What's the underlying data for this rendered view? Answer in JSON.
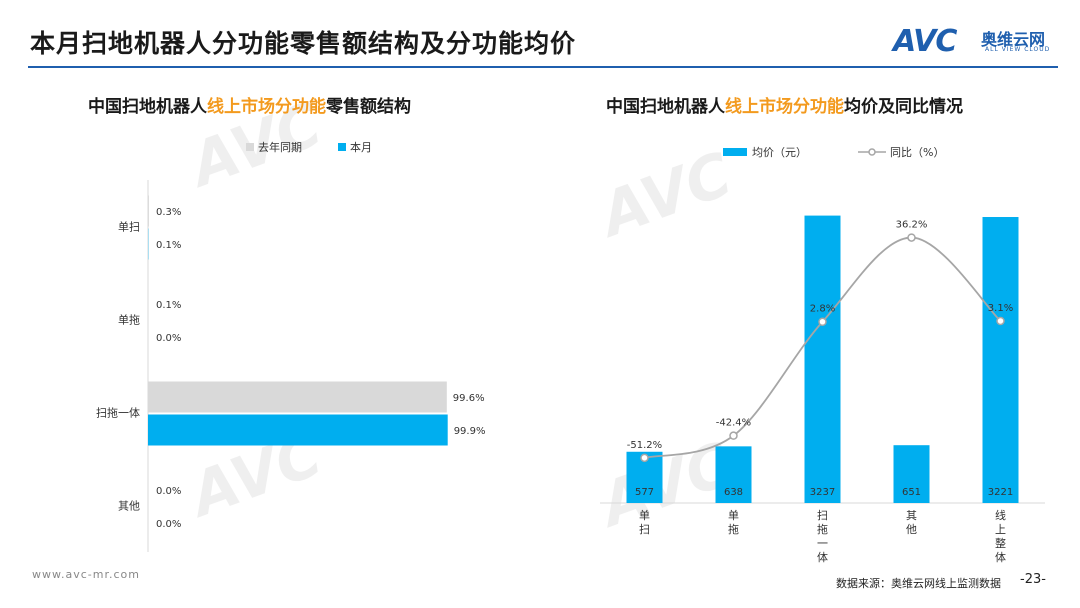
{
  "page": {
    "title": "本月扫地机器人分功能零售额结构及分功能均价",
    "logo_text": "AVC",
    "logo_cn": "奥维云网",
    "logo_en": "ALL VIEW CLOUD",
    "footer_url": "www.avc-mr.com",
    "source": "数据来源：奥维云网线上监测数据",
    "page_number": "-23-"
  },
  "left_chart": {
    "title_prefix": "中国扫地机器人",
    "title_highlight": "线上市场分功能",
    "title_suffix": "零售额结构"
  },
  "right_chart": {
    "title_prefix": "中国扫地机器人",
    "title_highlight": "线上市场分功能",
    "title_suffix": "均价及同比情况"
  },
  "colors": {
    "current": "#00aeef",
    "last_year": "#d9d9d9",
    "line": "#a6a6a6",
    "title_highlight": "#f39a1e",
    "brand": "#1f5fae"
  },
  "chart_data": [
    {
      "type": "bar",
      "orientation": "horizontal",
      "categories": [
        "单扫",
        "单拖",
        "扫拖一体",
        "其他"
      ],
      "series": [
        {
          "name": "去年同期",
          "values": [
            0.3,
            0.1,
            99.6,
            0.0
          ],
          "labels": [
            "0.3%",
            "0.1%",
            "99.6%",
            "0.0%"
          ]
        },
        {
          "name": "本月",
          "values": [
            0.1,
            0.0,
            99.9,
            0.0
          ],
          "labels": [
            "0.1%",
            "0.0%",
            "99.9%",
            "0.0%"
          ]
        }
      ],
      "xlim": [
        0,
        100
      ],
      "legend": "top"
    },
    {
      "type": "bar",
      "categories": [
        "单扫",
        "单拖",
        "扫拖一体",
        "其他",
        "线上整体"
      ],
      "series": [
        {
          "name": "均价（元）",
          "type": "bar",
          "values": [
            577,
            638,
            3237,
            651,
            3221
          ],
          "labels": [
            "577",
            "638",
            "3237",
            "651",
            "3221"
          ]
        },
        {
          "name": "同比（%）",
          "type": "line",
          "values": [
            -51.2,
            -42.4,
            2.8,
            36.2,
            3.1
          ],
          "labels": [
            "-51.2%",
            "-42.4%",
            "2.8%",
            "36.2%",
            "3.1%"
          ]
        }
      ],
      "legend": "top"
    }
  ]
}
